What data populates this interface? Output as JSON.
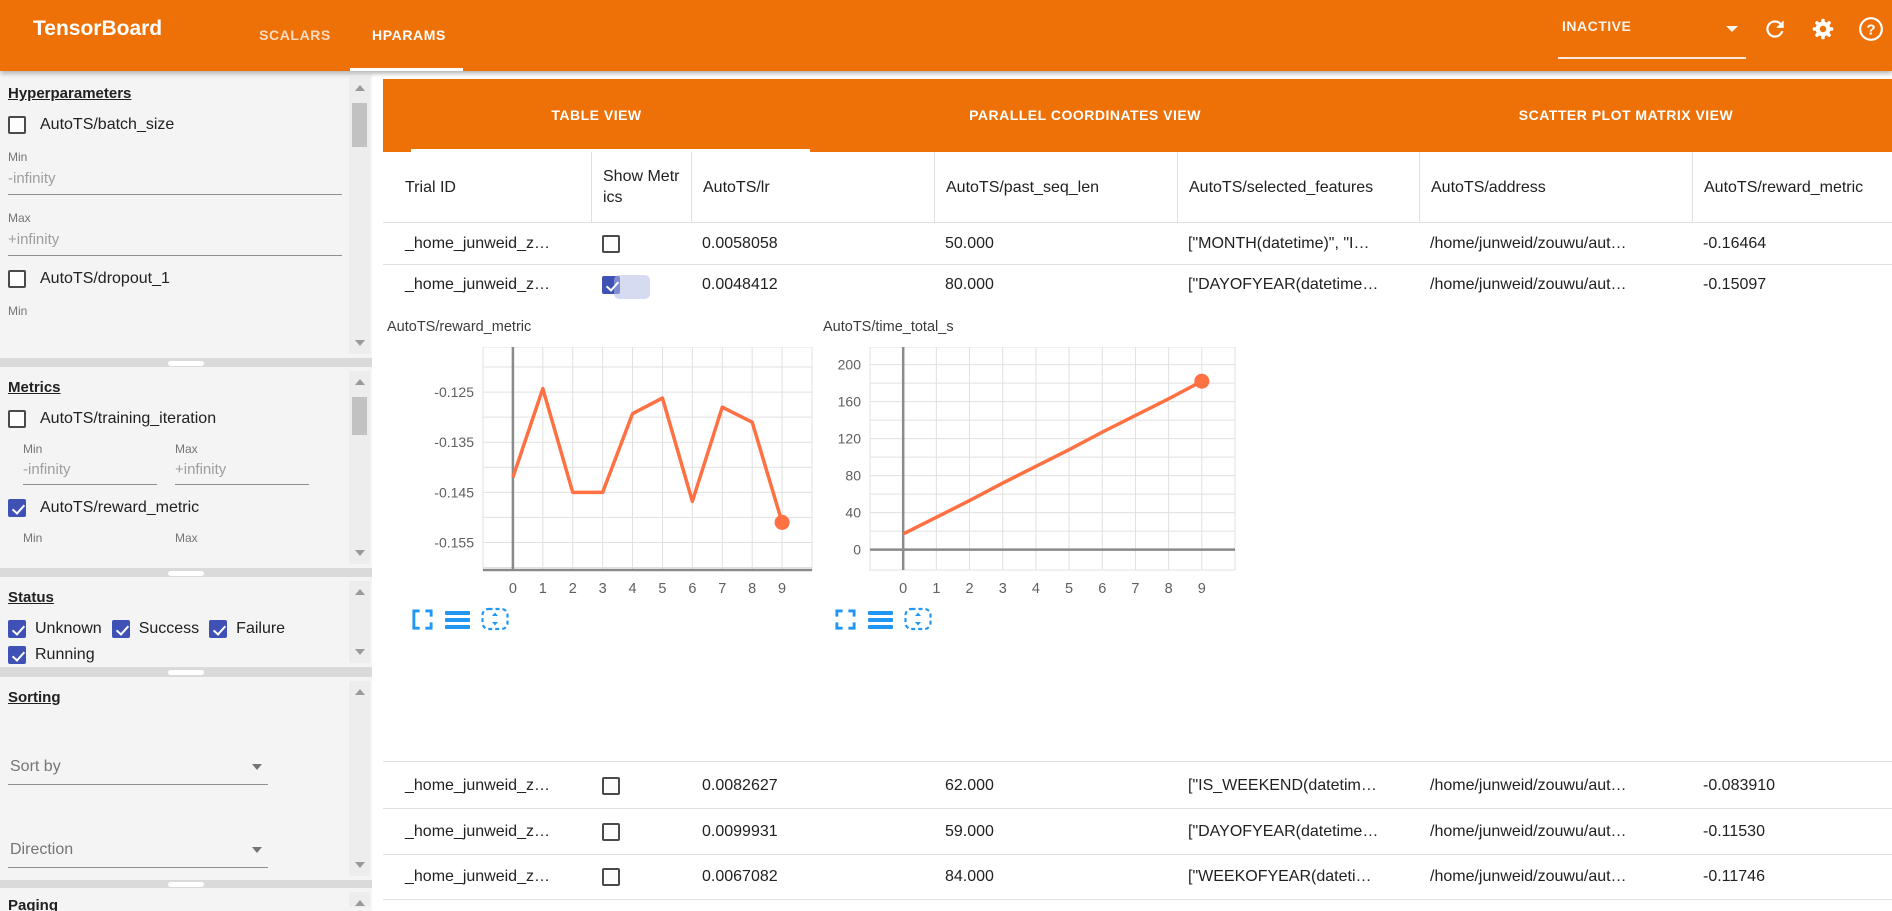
{
  "toolbar": {
    "title": "TensorBoard",
    "tabs": [
      {
        "label": "SCALARS",
        "active": false
      },
      {
        "label": "HPARAMS",
        "active": true
      }
    ],
    "run_status": "INACTIVE",
    "icons": {
      "refresh": "refresh-icon",
      "settings": "gear-icon",
      "help": "help-icon"
    }
  },
  "sidebar": {
    "hyperparameters": {
      "title": "Hyperparameters",
      "items": [
        {
          "label": "AutoTS/batch_size",
          "checked": false,
          "min_label": "Min",
          "min_value": "-infinity",
          "max_label": "Max",
          "max_value": "+infinity"
        },
        {
          "label": "AutoTS/dropout_1",
          "checked": false,
          "min_label": "Min"
        }
      ]
    },
    "metrics": {
      "title": "Metrics",
      "items": [
        {
          "label": "AutoTS/training_iteration",
          "checked": false,
          "min_label": "Min",
          "min_value": "-infinity",
          "max_label": "Max",
          "max_value": "+infinity"
        },
        {
          "label": "AutoTS/reward_metric",
          "checked": true,
          "min_label": "Min",
          "max_label": "Max"
        }
      ]
    },
    "status": {
      "title": "Status",
      "options": [
        {
          "label": "Unknown",
          "checked": true
        },
        {
          "label": "Success",
          "checked": true
        },
        {
          "label": "Failure",
          "checked": true
        },
        {
          "label": "Running",
          "checked": true
        }
      ]
    },
    "sorting": {
      "title": "Sorting",
      "sort_by_placeholder": "Sort by",
      "direction_placeholder": "Direction"
    },
    "paging": {
      "title": "Paging"
    }
  },
  "main": {
    "view_tabs": [
      {
        "label": "TABLE VIEW",
        "active": true
      },
      {
        "label": "PARALLEL COORDINATES VIEW",
        "active": false
      },
      {
        "label": "SCATTER PLOT MATRIX VIEW",
        "active": false
      }
    ],
    "table": {
      "columns": [
        "Trial ID",
        "Show Metrics",
        "AutoTS/lr",
        "AutoTS/past_seq_len",
        "AutoTS/selected_features",
        "AutoTS/address",
        "AutoTS/reward_metric"
      ],
      "rows": [
        {
          "trial_id": "_home_junweid_z…",
          "show_metrics": false,
          "lr": "0.0058058",
          "past_seq_len": "50.000",
          "selected_features": "[\"MONTH(datetime)\", \"I…",
          "address": "/home/junweid/zouwu/aut…",
          "reward_metric": "-0.16464"
        },
        {
          "trial_id": "_home_junweid_z…",
          "show_metrics": true,
          "lr": "0.0048412",
          "past_seq_len": "80.000",
          "selected_features": "[\"DAYOFYEAR(datetime…",
          "address": "/home/junweid/zouwu/aut…",
          "reward_metric": "-0.15097"
        },
        {
          "trial_id": "_home_junweid_z…",
          "show_metrics": false,
          "lr": "0.0082627",
          "past_seq_len": "62.000",
          "selected_features": "[\"IS_WEEKEND(datetim…",
          "address": "/home/junweid/zouwu/aut…",
          "reward_metric": "-0.083910"
        },
        {
          "trial_id": "_home_junweid_z…",
          "show_metrics": false,
          "lr": "0.0099931",
          "past_seq_len": "59.000",
          "selected_features": "[\"DAYOFYEAR(datetime…",
          "address": "/home/junweid/zouwu/aut…",
          "reward_metric": "-0.11530"
        },
        {
          "trial_id": "_home_junweid_z…",
          "show_metrics": false,
          "lr": "0.0067082",
          "past_seq_len": "84.000",
          "selected_features": "[\"WEEKOFYEAR(dateti…",
          "address": "/home/junweid/zouwu/aut…",
          "reward_metric": "-0.11746"
        }
      ]
    }
  },
  "chart_data": [
    {
      "type": "line",
      "title": "AutoTS/reward_metric",
      "x": [
        0,
        1,
        2,
        3,
        4,
        5,
        6,
        7,
        8,
        9
      ],
      "values": [
        -0.142,
        -0.1243,
        -0.145,
        -0.145,
        -0.1293,
        -0.1262,
        -0.1468,
        -0.128,
        -0.131,
        -0.151
      ],
      "xticks": [
        "0",
        "1",
        "2",
        "3",
        "4",
        "5",
        "6",
        "7",
        "8",
        "9"
      ],
      "yticks": [
        -0.125,
        -0.135,
        -0.145,
        -0.155
      ],
      "ytick_labels": [
        "-0.125",
        "-0.135",
        "-0.145",
        "-0.155"
      ],
      "grid_values": [
        -0.12,
        -0.125,
        -0.13,
        -0.135,
        -0.14,
        -0.145,
        -0.15,
        -0.155,
        -0.16
      ],
      "ylim": [
        -0.1605,
        -0.116
      ],
      "x_axis_value": null,
      "line_color": "#ff7043",
      "end_dot": true,
      "grid": true,
      "legend": "none"
    },
    {
      "type": "line",
      "title": "AutoTS/time_total_s",
      "x": [
        0,
        1,
        2,
        3,
        4,
        5,
        6,
        7,
        8,
        9
      ],
      "values": [
        17,
        35,
        53,
        72,
        90,
        108,
        127,
        145,
        163,
        182
      ],
      "xticks": [
        "0",
        "1",
        "2",
        "3",
        "4",
        "5",
        "6",
        "7",
        "8",
        "9"
      ],
      "yticks": [
        200,
        160,
        120,
        80,
        40,
        0
      ],
      "ytick_labels": [
        "200",
        "160",
        "120",
        "80",
        "40",
        "0"
      ],
      "grid_values": [
        0,
        20,
        40,
        60,
        80,
        100,
        120,
        140,
        160,
        180,
        200
      ],
      "ylim": [
        -22,
        219
      ],
      "x_axis_value": 0,
      "line_color": "#ff7043",
      "end_dot": true,
      "grid": true,
      "legend": "none"
    }
  ],
  "colors": {
    "header_orange": "#ee7108",
    "checkbox_indigo": "#3f51b5",
    "chart_line": "#ff7043",
    "chart_icon_blue": "#2196f3"
  }
}
